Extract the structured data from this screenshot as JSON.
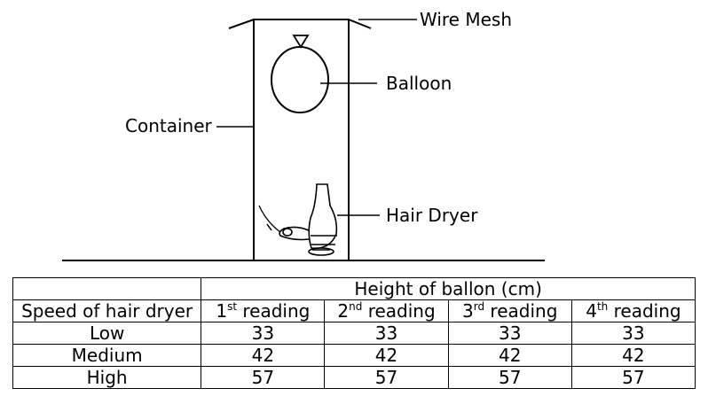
{
  "diagram": {
    "labels": {
      "wire_mesh": "Wire Mesh",
      "balloon": "Balloon",
      "container": "Container",
      "hair_dryer": "Hair Dryer"
    }
  },
  "table": {
    "group_header": "Height of ballon (cm)",
    "row_header": "Speed of hair dryer",
    "readings": [
      {
        "num": "1",
        "sup": "st",
        "word": " reading"
      },
      {
        "num": "2",
        "sup": "nd",
        "word": " reading"
      },
      {
        "num": "3",
        "sup": "rd",
        "word": " reading"
      },
      {
        "num": "4",
        "sup": "th",
        "word": " reading"
      }
    ],
    "rows": [
      {
        "speed": "Low",
        "values": [
          "33",
          "33",
          "33",
          "33"
        ]
      },
      {
        "speed": "Medium",
        "values": [
          "42",
          "42",
          "42",
          "42"
        ]
      },
      {
        "speed": "High",
        "values": [
          "57",
          "57",
          "57",
          "57"
        ]
      }
    ]
  }
}
